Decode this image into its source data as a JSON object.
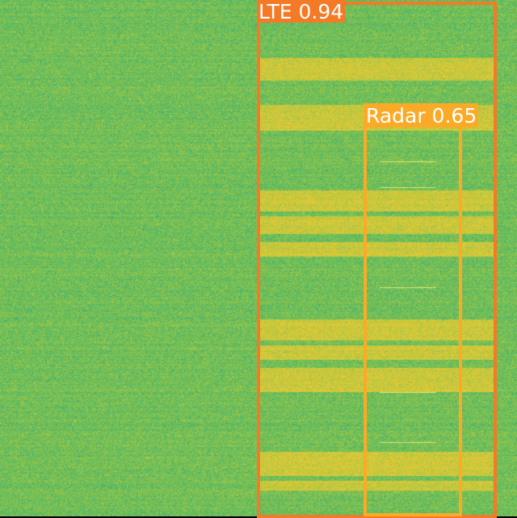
{
  "detections": [
    {
      "label": "LTE 0.94",
      "color": "#f47a27"
    },
    {
      "label": "Radar 0.65",
      "color": "#fbaa28"
    }
  ],
  "palette": {
    "background_green": "#7cc25a",
    "signal_yellow": "#f0c33c",
    "noise_teal": "#3fb59a"
  }
}
